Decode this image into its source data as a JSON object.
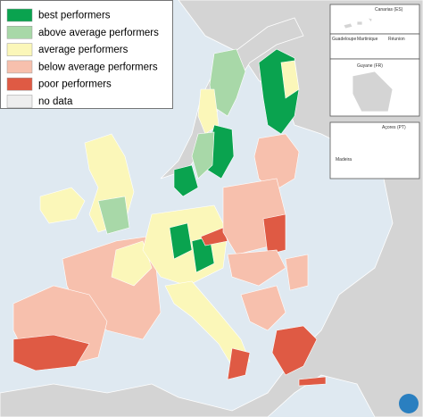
{
  "legend": [
    {
      "label": "best performers",
      "color": "#0aa34f"
    },
    {
      "label": "above average performers",
      "color": "#a8d8a8"
    },
    {
      "label": "average performers",
      "color": "#fbf7b9"
    },
    {
      "label": "below average performers",
      "color": "#f7c0ad"
    },
    {
      "label": "poor performers",
      "color": "#df5a44"
    },
    {
      "label": "no data",
      "color": "#eeeeee"
    }
  ],
  "insets": {
    "canarias": "Canarias (ES)",
    "guadeloupe": "Guadeloupe",
    "martinique": "Martinique",
    "reunion": "Réunion",
    "guyane": "Guyane (FR)",
    "acores": "Açores (PT)",
    "madeira": "Madeira"
  }
}
